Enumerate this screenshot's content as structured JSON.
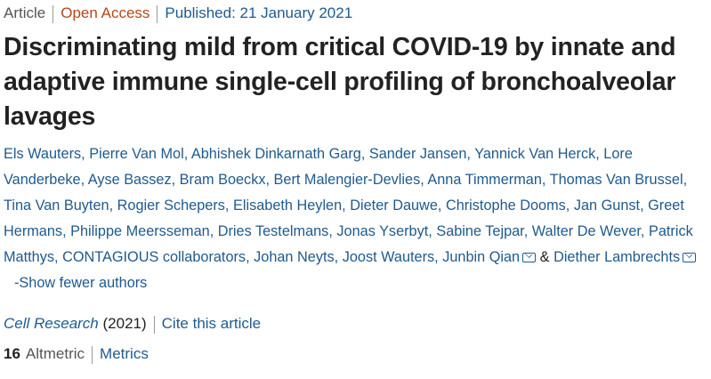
{
  "header": {
    "article_type": "Article",
    "access": "Open Access",
    "published": "Published: 21 January 2021"
  },
  "title": "Discriminating mild from critical COVID-19 by innate and adaptive immune single-cell profiling of bronchoalveolar lavages",
  "authors": [
    "Els Wauters",
    "Pierre Van Mol",
    "Abhishek Dinkarnath Garg",
    "Sander Jansen",
    "Yannick Van Herck",
    "Lore Vanderbeke",
    "Ayse Bassez",
    "Bram Boeckx",
    "Bert Malengier-Devlies",
    "Anna Timmerman",
    "Thomas Van Brussel",
    "Tina Van Buyten",
    "Rogier Schepers",
    "Elisabeth Heylen",
    "Dieter Dauwe",
    "Christophe Dooms",
    "Jan Gunst",
    "Greet Hermans",
    "Philippe Meersseman",
    "Dries Testelmans",
    "Jonas Yserbyt",
    "Sabine Tejpar",
    "Walter De Wever",
    "Patrick Matthys",
    "CONTAGIOUS collaborators",
    "Johan Neyts",
    "Joost Wauters"
  ],
  "corresponding_authors": [
    "Junbin Qian",
    "Diether Lambrechts"
  ],
  "ampersand": "&",
  "toggle_authors": "-Show fewer authors",
  "journal": {
    "name": "Cell Research",
    "year": "(2021)",
    "cite": "Cite this article"
  },
  "metrics": {
    "altmetric_score": "16",
    "altmetric_label": "Altmetric",
    "metrics_link": "Metrics"
  },
  "colors": {
    "link": "#1f5a8e",
    "open_access": "#b5451b"
  }
}
